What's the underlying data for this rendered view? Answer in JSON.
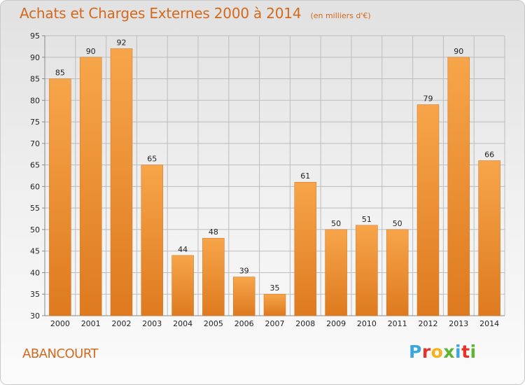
{
  "header": {
    "title": "Achats et Charges Externes 2000 à 2014",
    "subtitle": "(en milliers d'€)"
  },
  "footer": {
    "place": "ABANCOURT",
    "logo_letters": [
      "P",
      "r",
      "o",
      "x",
      "i",
      "t",
      "i"
    ],
    "logo_colors": [
      "#3aa8e0",
      "#e6332a",
      "#f6b21b",
      "#5cb531",
      "#3aa8e0",
      "#e6332a",
      "#5cb531"
    ]
  },
  "chart_data": {
    "type": "bar",
    "title": "Achats et Charges Externes 2000 à 2014",
    "subtitle": "(en milliers d'€)",
    "categories": [
      "2000",
      "2001",
      "2002",
      "2003",
      "2004",
      "2005",
      "2006",
      "2007",
      "2008",
      "2009",
      "2010",
      "2011",
      "2012",
      "2013",
      "2014"
    ],
    "values": [
      85,
      90,
      92,
      65,
      44,
      48,
      39,
      35,
      61,
      50,
      51,
      50,
      79,
      90,
      66
    ],
    "ylim": [
      30,
      95
    ],
    "yticks": [
      30,
      35,
      40,
      45,
      50,
      55,
      60,
      65,
      70,
      75,
      80,
      85,
      90,
      95
    ],
    "grid": true,
    "bar_color": "#f29a3c"
  }
}
